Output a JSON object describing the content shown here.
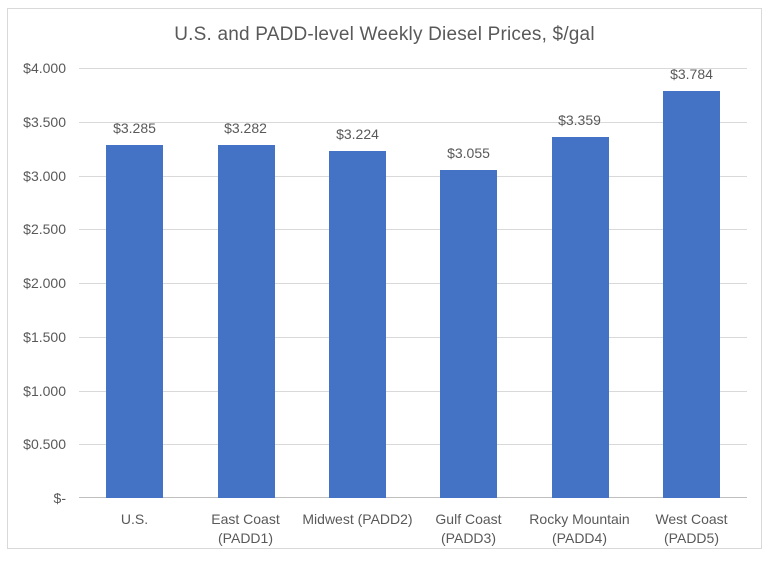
{
  "chart": {
    "title": "U.S. and PADD-level Weekly Diesel Prices, $/gal"
  },
  "chart_data": {
    "type": "bar",
    "title": "U.S. and PADD-level Weekly Diesel Prices, $/gal",
    "categories": [
      "U.S.",
      "East Coast (PADD1)",
      "Midwest (PADD2)",
      "Gulf Coast (PADD3)",
      "Rocky Mountain (PADD4)",
      "West Coast (PADD5)"
    ],
    "category_lines": [
      [
        "U.S."
      ],
      [
        "East Coast",
        "(PADD1)"
      ],
      [
        "Midwest (PADD2)"
      ],
      [
        "Gulf Coast",
        "(PADD3)"
      ],
      [
        "Rocky Mountain",
        "(PADD4)"
      ],
      [
        "West Coast",
        "(PADD5)"
      ]
    ],
    "values": [
      3.285,
      3.282,
      3.224,
      3.055,
      3.359,
      3.784
    ],
    "data_labels": [
      "$3.285",
      "$3.282",
      "$3.224",
      "$3.055",
      "$3.359",
      "$3.784"
    ],
    "xlabel": "",
    "ylabel": "",
    "ylim": [
      0,
      4
    ],
    "ytick_step": 0.5,
    "yticks": [
      {
        "label": "$4.000",
        "value": 4.0
      },
      {
        "label": "$3.500",
        "value": 3.5
      },
      {
        "label": "$3.000",
        "value": 3.0
      },
      {
        "label": "$2.500",
        "value": 2.5
      },
      {
        "label": "$2.000",
        "value": 2.0
      },
      {
        "label": "$1.500",
        "value": 1.5
      },
      {
        "label": "$1.000",
        "value": 1.0
      },
      {
        "label": "$0.500",
        "value": 0.5
      },
      {
        "label": "$-",
        "value": 0.0
      }
    ],
    "grid": true,
    "legend": false,
    "colors": {
      "bar": "#4472C4",
      "text": "#595959",
      "gridline": "#D9D9D9",
      "axis_line": "#BFBFBF",
      "frame_border": "#D9D9D9",
      "background": "#FFFFFF"
    }
  }
}
